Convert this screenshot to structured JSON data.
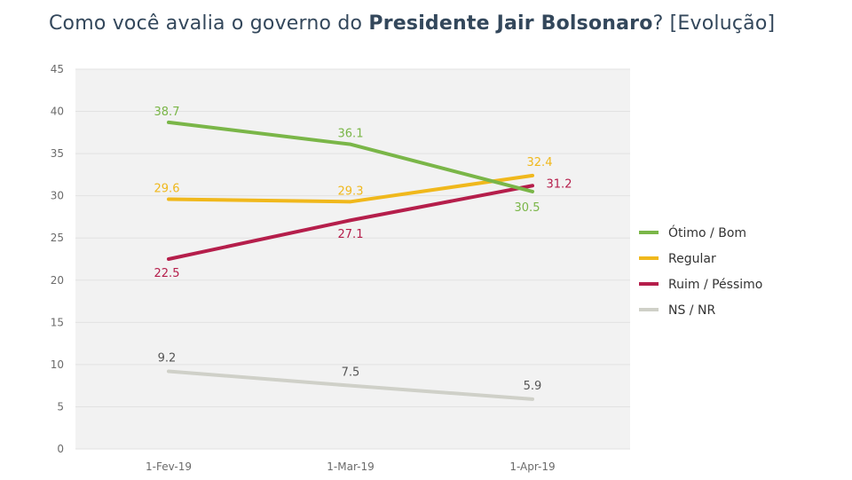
{
  "title": {
    "prefix": "Como você avalia o governo do ",
    "bold": "Presidente Jair Bolsonaro",
    "suffix": "? [Evolução]"
  },
  "chart_data": {
    "type": "line",
    "categories": [
      "1-Fev-19",
      "1-Mar-19",
      "1-Apr-19"
    ],
    "ylim": [
      0,
      45
    ],
    "yticks": [
      0,
      5,
      10,
      15,
      20,
      25,
      30,
      35,
      40,
      45
    ],
    "grid": true,
    "legend_position": "right",
    "series": [
      {
        "name": "Ótimo / Bom",
        "color": "#7ab648",
        "values": [
          38.7,
          36.1,
          30.5
        ],
        "labels": [
          "38.7",
          "36.1",
          "30.5"
        ]
      },
      {
        "name": "Regular",
        "color": "#f0b81c",
        "values": [
          29.6,
          29.3,
          32.4
        ],
        "labels": [
          "29.6",
          "29.3",
          "32.4"
        ]
      },
      {
        "name": "Ruim / Péssimo",
        "color": "#b51e4b",
        "values": [
          22.5,
          27.1,
          31.2
        ],
        "labels": [
          "22.5",
          "27.1",
          "31.2"
        ]
      },
      {
        "name": "NS / NR",
        "color": "#cfd0c8",
        "label_color": "#555555",
        "values": [
          9.2,
          7.5,
          5.9
        ],
        "labels": [
          "9.2",
          "7.5",
          "5.9"
        ]
      }
    ]
  }
}
